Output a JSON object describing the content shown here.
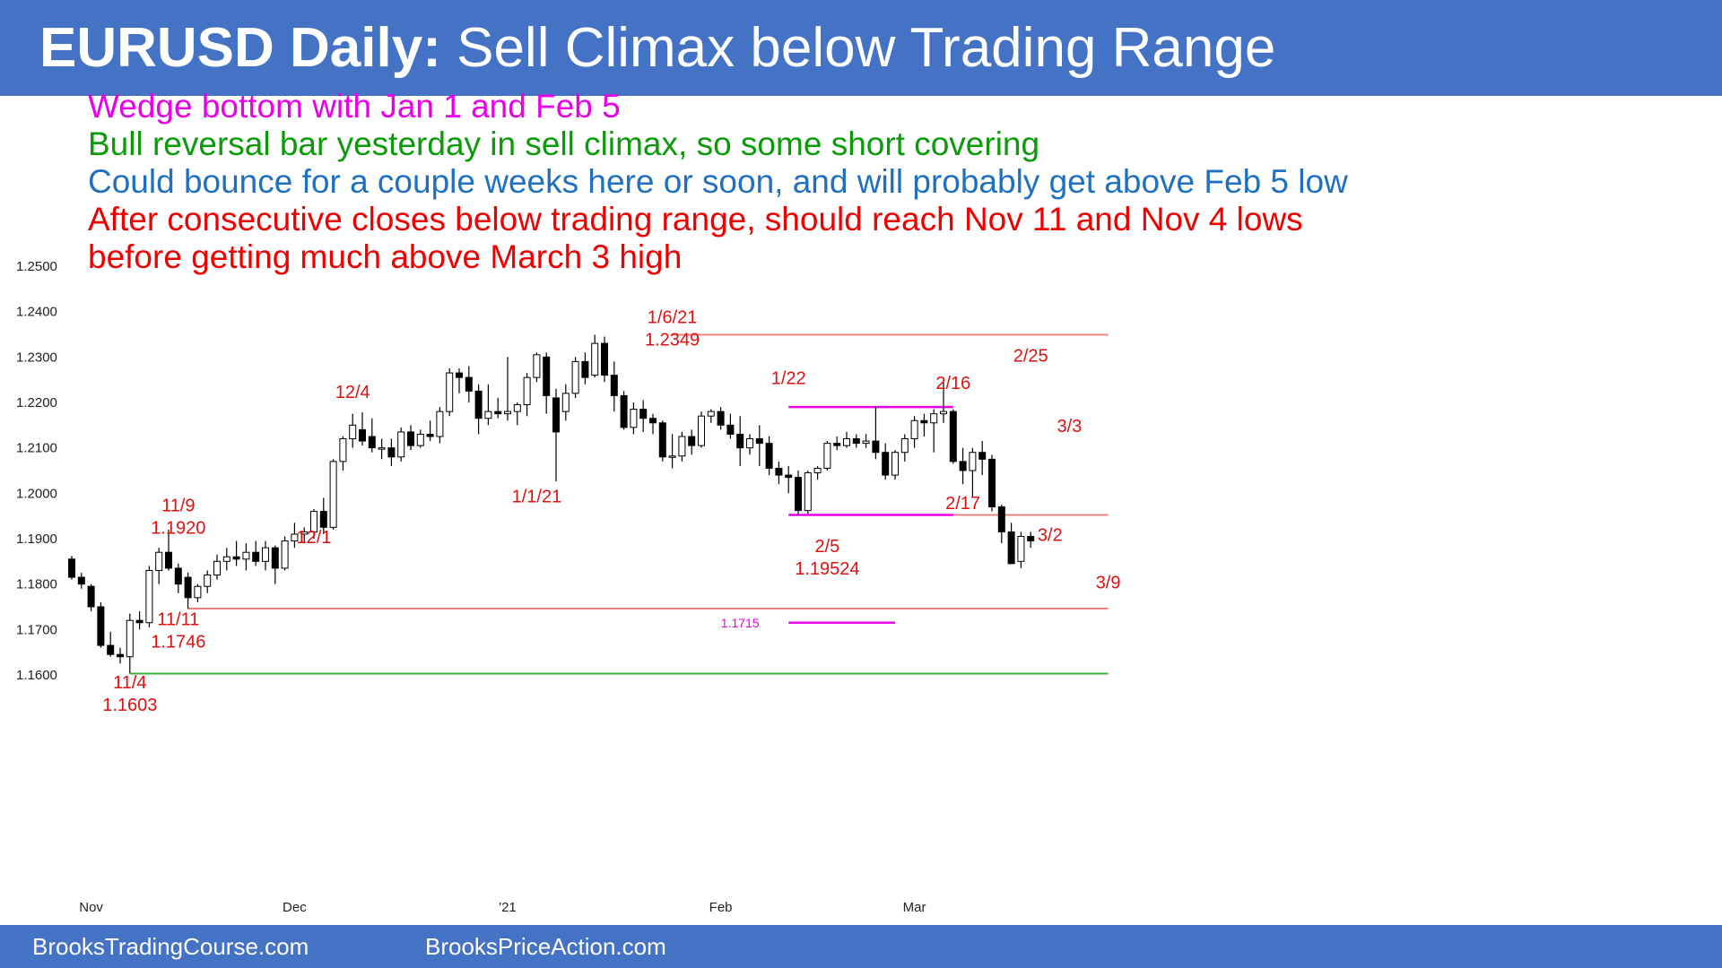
{
  "header": {
    "title_bold": "EURUSD Daily:",
    "title_rest": " Sell Climax below Trading Range",
    "bg": "#4472C4"
  },
  "notes": [
    {
      "text": "Wedge bottom with Jan 1 and Feb 5",
      "color": "#E800E8"
    },
    {
      "text": "Bull reversal bar yesterday in sell climax, so some short covering",
      "color": "#0A9A0A"
    },
    {
      "text": "Could bounce for a couple weeks here or soon, and will probably get above Feb 5 low",
      "color": "#1F70C1"
    },
    {
      "text": "After consecutive closes below trading range, should reach Nov 11 and Nov 4 lows",
      "color": "#EE0000"
    },
    {
      "text": "before getting much above March 3 high",
      "color": "#EE0000"
    }
  ],
  "footer": {
    "left": "BrooksTradingCourse.com",
    "right": "BrooksPriceAction.com"
  },
  "chart_data": {
    "type": "candlestick",
    "title": "EURUSD Daily",
    "ylim": [
      1.16,
      1.25
    ],
    "yticks": [
      "1.2500",
      "1.2400",
      "1.2300",
      "1.2200",
      "1.2100",
      "1.2000",
      "1.1900",
      "1.1800",
      "1.1700",
      "1.1600"
    ],
    "xticks": [
      {
        "label": "Nov",
        "i": 2
      },
      {
        "label": "Dec",
        "i": 23
      },
      {
        "label": "'21",
        "i": 45
      },
      {
        "label": "Feb",
        "i": 67
      },
      {
        "label": "Mar",
        "i": 87
      }
    ],
    "bars": [
      {
        "o": 1.1855,
        "h": 1.1862,
        "l": 1.181,
        "c": 1.1815
      },
      {
        "o": 1.1815,
        "h": 1.1825,
        "l": 1.179,
        "c": 1.18
      },
      {
        "o": 1.1795,
        "h": 1.18,
        "l": 1.174,
        "c": 1.175
      },
      {
        "o": 1.175,
        "h": 1.176,
        "l": 1.166,
        "c": 1.1665
      },
      {
        "o": 1.1665,
        "h": 1.1695,
        "l": 1.164,
        "c": 1.1645
      },
      {
        "o": 1.1645,
        "h": 1.166,
        "l": 1.1625,
        "c": 1.164
      },
      {
        "o": 1.164,
        "h": 1.1735,
        "l": 1.1603,
        "c": 1.172
      },
      {
        "o": 1.172,
        "h": 1.174,
        "l": 1.17,
        "c": 1.1715
      },
      {
        "o": 1.1715,
        "h": 1.184,
        "l": 1.1705,
        "c": 1.183
      },
      {
        "o": 1.183,
        "h": 1.188,
        "l": 1.18,
        "c": 1.187
      },
      {
        "o": 1.187,
        "h": 1.192,
        "l": 1.183,
        "c": 1.1835
      },
      {
        "o": 1.1835,
        "h": 1.1845,
        "l": 1.178,
        "c": 1.18
      },
      {
        "o": 1.1815,
        "h": 1.1825,
        "l": 1.1746,
        "c": 1.177
      },
      {
        "o": 1.177,
        "h": 1.18,
        "l": 1.176,
        "c": 1.1795
      },
      {
        "o": 1.1795,
        "h": 1.183,
        "l": 1.178,
        "c": 1.182
      },
      {
        "o": 1.182,
        "h": 1.1865,
        "l": 1.181,
        "c": 1.185
      },
      {
        "o": 1.185,
        "h": 1.188,
        "l": 1.183,
        "c": 1.186
      },
      {
        "o": 1.186,
        "h": 1.1895,
        "l": 1.184,
        "c": 1.1855
      },
      {
        "o": 1.1855,
        "h": 1.189,
        "l": 1.183,
        "c": 1.187
      },
      {
        "o": 1.187,
        "h": 1.1895,
        "l": 1.184,
        "c": 1.185
      },
      {
        "o": 1.185,
        "h": 1.1895,
        "l": 1.183,
        "c": 1.188
      },
      {
        "o": 1.188,
        "h": 1.1885,
        "l": 1.18,
        "c": 1.1835
      },
      {
        "o": 1.1835,
        "h": 1.1905,
        "l": 1.183,
        "c": 1.1895
      },
      {
        "o": 1.1895,
        "h": 1.1935,
        "l": 1.188,
        "c": 1.191
      },
      {
        "o": 1.191,
        "h": 1.1925,
        "l": 1.189,
        "c": 1.1915
      },
      {
        "o": 1.1915,
        "h": 1.1965,
        "l": 1.19,
        "c": 1.196
      },
      {
        "o": 1.196,
        "h": 1.199,
        "l": 1.191,
        "c": 1.1925
      },
      {
        "o": 1.1925,
        "h": 1.2075,
        "l": 1.192,
        "c": 1.207
      },
      {
        "o": 1.207,
        "h": 1.2125,
        "l": 1.205,
        "c": 1.212
      },
      {
        "o": 1.212,
        "h": 1.2175,
        "l": 1.21,
        "c": 1.215
      },
      {
        "o": 1.214,
        "h": 1.2178,
        "l": 1.2105,
        "c": 1.2115
      },
      {
        "o": 1.2125,
        "h": 1.2165,
        "l": 1.209,
        "c": 1.21
      },
      {
        "o": 1.21,
        "h": 1.212,
        "l": 1.2075,
        "c": 1.21
      },
      {
        "o": 1.21,
        "h": 1.212,
        "l": 1.206,
        "c": 1.208
      },
      {
        "o": 1.208,
        "h": 1.2145,
        "l": 1.207,
        "c": 1.2135
      },
      {
        "o": 1.2135,
        "h": 1.215,
        "l": 1.2095,
        "c": 1.2105
      },
      {
        "o": 1.2105,
        "h": 1.214,
        "l": 1.21,
        "c": 1.213
      },
      {
        "o": 1.213,
        "h": 1.216,
        "l": 1.2115,
        "c": 1.2125
      },
      {
        "o": 1.2125,
        "h": 1.219,
        "l": 1.211,
        "c": 1.218
      },
      {
        "o": 1.218,
        "h": 1.2275,
        "l": 1.217,
        "c": 1.2265
      },
      {
        "o": 1.2265,
        "h": 1.2275,
        "l": 1.222,
        "c": 1.2255
      },
      {
        "o": 1.2255,
        "h": 1.228,
        "l": 1.22,
        "c": 1.2225
      },
      {
        "o": 1.2225,
        "h": 1.224,
        "l": 1.213,
        "c": 1.2165
      },
      {
        "o": 1.2165,
        "h": 1.224,
        "l": 1.215,
        "c": 1.218
      },
      {
        "o": 1.218,
        "h": 1.221,
        "l": 1.2165,
        "c": 1.2175
      },
      {
        "o": 1.2175,
        "h": 1.23,
        "l": 1.216,
        "c": 1.218
      },
      {
        "o": 1.218,
        "h": 1.22,
        "l": 1.215,
        "c": 1.2195
      },
      {
        "o": 1.2195,
        "h": 1.2265,
        "l": 1.217,
        "c": 1.2255
      },
      {
        "o": 1.2255,
        "h": 1.231,
        "l": 1.2245,
        "c": 1.2305
      },
      {
        "o": 1.23,
        "h": 1.231,
        "l": 1.2175,
        "c": 1.2215
      },
      {
        "o": 1.221,
        "h": 1.223,
        "l": 1.2026,
        "c": 1.2135
      },
      {
        "o": 1.218,
        "h": 1.224,
        "l": 1.216,
        "c": 1.222
      },
      {
        "o": 1.222,
        "h": 1.23,
        "l": 1.221,
        "c": 1.229
      },
      {
        "o": 1.229,
        "h": 1.231,
        "l": 1.224,
        "c": 1.2255
      },
      {
        "o": 1.226,
        "h": 1.2349,
        "l": 1.2255,
        "c": 1.233
      },
      {
        "o": 1.233,
        "h": 1.2345,
        "l": 1.2245,
        "c": 1.226
      },
      {
        "o": 1.226,
        "h": 1.229,
        "l": 1.218,
        "c": 1.2215
      },
      {
        "o": 1.2215,
        "h": 1.2225,
        "l": 1.214,
        "c": 1.2145
      },
      {
        "o": 1.2145,
        "h": 1.22,
        "l": 1.213,
        "c": 1.2185
      },
      {
        "o": 1.2185,
        "h": 1.2205,
        "l": 1.2135,
        "c": 1.2165
      },
      {
        "o": 1.2165,
        "h": 1.2175,
        "l": 1.213,
        "c": 1.2155
      },
      {
        "o": 1.2155,
        "h": 1.216,
        "l": 1.207,
        "c": 1.208
      },
      {
        "o": 1.208,
        "h": 1.213,
        "l": 1.2055,
        "c": 1.2082
      },
      {
        "o": 1.2082,
        "h": 1.2135,
        "l": 1.207,
        "c": 1.2125
      },
      {
        "o": 1.2125,
        "h": 1.214,
        "l": 1.2085,
        "c": 1.2105
      },
      {
        "o": 1.2105,
        "h": 1.218,
        "l": 1.21,
        "c": 1.217
      },
      {
        "o": 1.217,
        "h": 1.2185,
        "l": 1.2155,
        "c": 1.218
      },
      {
        "o": 1.218,
        "h": 1.219,
        "l": 1.214,
        "c": 1.215
      },
      {
        "o": 1.215,
        "h": 1.2175,
        "l": 1.212,
        "c": 1.213
      },
      {
        "o": 1.213,
        "h": 1.217,
        "l": 1.206,
        "c": 1.21
      },
      {
        "o": 1.21,
        "h": 1.213,
        "l": 1.2085,
        "c": 1.212
      },
      {
        "o": 1.212,
        "h": 1.215,
        "l": 1.206,
        "c": 1.211
      },
      {
        "o": 1.211,
        "h": 1.2125,
        "l": 1.204,
        "c": 1.2055
      },
      {
        "o": 1.2055,
        "h": 1.207,
        "l": 1.202,
        "c": 1.204
      },
      {
        "o": 1.204,
        "h": 1.206,
        "l": 1.2,
        "c": 1.2035
      },
      {
        "o": 1.2035,
        "h": 1.205,
        "l": 1.1952,
        "c": 1.1962
      },
      {
        "o": 1.1962,
        "h": 1.205,
        "l": 1.1955,
        "c": 1.2045
      },
      {
        "o": 1.2045,
        "h": 1.206,
        "l": 1.203,
        "c": 1.2055
      },
      {
        "o": 1.2055,
        "h": 1.2115,
        "l": 1.205,
        "c": 1.211
      },
      {
        "o": 1.211,
        "h": 1.2125,
        "l": 1.2095,
        "c": 1.2105
      },
      {
        "o": 1.2105,
        "h": 1.2135,
        "l": 1.21,
        "c": 1.212
      },
      {
        "o": 1.212,
        "h": 1.213,
        "l": 1.21,
        "c": 1.211
      },
      {
        "o": 1.211,
        "h": 1.213,
        "l": 1.21,
        "c": 1.2115
      },
      {
        "o": 1.2115,
        "h": 1.219,
        "l": 1.2075,
        "c": 1.209
      },
      {
        "o": 1.209,
        "h": 1.211,
        "l": 1.203,
        "c": 1.204
      },
      {
        "o": 1.204,
        "h": 1.2095,
        "l": 1.203,
        "c": 1.209
      },
      {
        "o": 1.209,
        "h": 1.213,
        "l": 1.207,
        "c": 1.212
      },
      {
        "o": 1.212,
        "h": 1.217,
        "l": 1.21,
        "c": 1.216
      },
      {
        "o": 1.216,
        "h": 1.2175,
        "l": 1.2125,
        "c": 1.2155
      },
      {
        "o": 1.2155,
        "h": 1.2185,
        "l": 1.209,
        "c": 1.2175
      },
      {
        "o": 1.2175,
        "h": 1.2245,
        "l": 1.2155,
        "c": 1.218
      },
      {
        "o": 1.218,
        "h": 1.2185,
        "l": 1.2065,
        "c": 1.207
      },
      {
        "o": 1.207,
        "h": 1.21,
        "l": 1.202,
        "c": 1.205
      },
      {
        "o": 1.205,
        "h": 1.21,
        "l": 1.199,
        "c": 1.209
      },
      {
        "o": 1.209,
        "h": 1.2115,
        "l": 1.204,
        "c": 1.2075
      },
      {
        "o": 1.2075,
        "h": 1.2085,
        "l": 1.196,
        "c": 1.197
      },
      {
        "o": 1.197,
        "h": 1.1975,
        "l": 1.189,
        "c": 1.1915
      },
      {
        "o": 1.1915,
        "h": 1.1935,
        "l": 1.1845,
        "c": 1.1845
      },
      {
        "o": 1.185,
        "h": 1.1915,
        "l": 1.1835,
        "c": 1.1905
      },
      {
        "o": 1.1905,
        "h": 1.1915,
        "l": 1.188,
        "c": 1.1895
      }
    ],
    "levels": [
      {
        "value": 1.2349,
        "from": 62,
        "to": 107,
        "color": "#F08080"
      },
      {
        "value": 1.219,
        "from": 74,
        "to": 91,
        "color": "#E800E8"
      },
      {
        "value": 1.19524,
        "from": 74,
        "to": 107,
        "color": "#F08080"
      },
      {
        "value": 1.19524,
        "from": 74,
        "to": 91,
        "color": "#E800E8"
      },
      {
        "value": 1.1746,
        "from": 12,
        "to": 107,
        "color": "#F08080"
      },
      {
        "value": 1.1603,
        "from": 6,
        "to": 107,
        "color": "#3CB43C"
      },
      {
        "value": 1.1715,
        "from": 74,
        "to": 85,
        "color": "#E800E8"
      }
    ],
    "annotations": [
      {
        "lines": [
          "1/6/21",
          "1.2349"
        ],
        "color": "#E01010",
        "i": 62,
        "y": 1.2375,
        "size": "normal"
      },
      {
        "lines": [
          "12/4"
        ],
        "color": "#E01010",
        "i": 29,
        "y": 1.221,
        "size": "normal"
      },
      {
        "lines": [
          "1/22"
        ],
        "color": "#E01010",
        "i": 74,
        "y": 1.224,
        "size": "normal"
      },
      {
        "lines": [
          "2/16"
        ],
        "color": "#E01010",
        "i": 91,
        "y": 1.223,
        "size": "normal"
      },
      {
        "lines": [
          "2/25"
        ],
        "color": "#E01010",
        "i": 99,
        "y": 1.229,
        "size": "normal"
      },
      {
        "lines": [
          "3/3"
        ],
        "color": "#E01010",
        "i": 103,
        "y": 1.2135,
        "size": "normal"
      },
      {
        "lines": [
          "11/9",
          "1.1920"
        ],
        "color": "#E01010",
        "i": 11,
        "y": 1.196,
        "size": "normal"
      },
      {
        "lines": [
          "1/1/21"
        ],
        "color": "#E01010",
        "i": 48,
        "y": 1.198,
        "size": "normal"
      },
      {
        "lines": [
          "2/17"
        ],
        "color": "#E01010",
        "i": 92,
        "y": 1.1965,
        "size": "normal"
      },
      {
        "lines": [
          "12/1"
        ],
        "color": "#E01010",
        "i": 25,
        "y": 1.189,
        "size": "normal"
      },
      {
        "lines": [
          "3/2"
        ],
        "color": "#E01010",
        "i": 101,
        "y": 1.1895,
        "size": "normal"
      },
      {
        "lines": [
          "2/5",
          "1.19524"
        ],
        "color": "#E01010",
        "i": 78,
        "y": 1.187,
        "size": "normal"
      },
      {
        "lines": [
          "3/9"
        ],
        "color": "#E01010",
        "i": 107,
        "y": 1.179,
        "size": "normal"
      },
      {
        "lines": [
          "11/11",
          "1.1746"
        ],
        "color": "#E01010",
        "i": 11,
        "y": 1.171,
        "size": "normal"
      },
      {
        "lines": [
          "1.1715"
        ],
        "color": "#E800E8",
        "i": 69,
        "y": 1.1705,
        "size": "small"
      },
      {
        "lines": [
          "11/4",
          "1.1603"
        ],
        "color": "#E01010",
        "i": 6,
        "y": 1.157,
        "size": "normal"
      }
    ]
  }
}
